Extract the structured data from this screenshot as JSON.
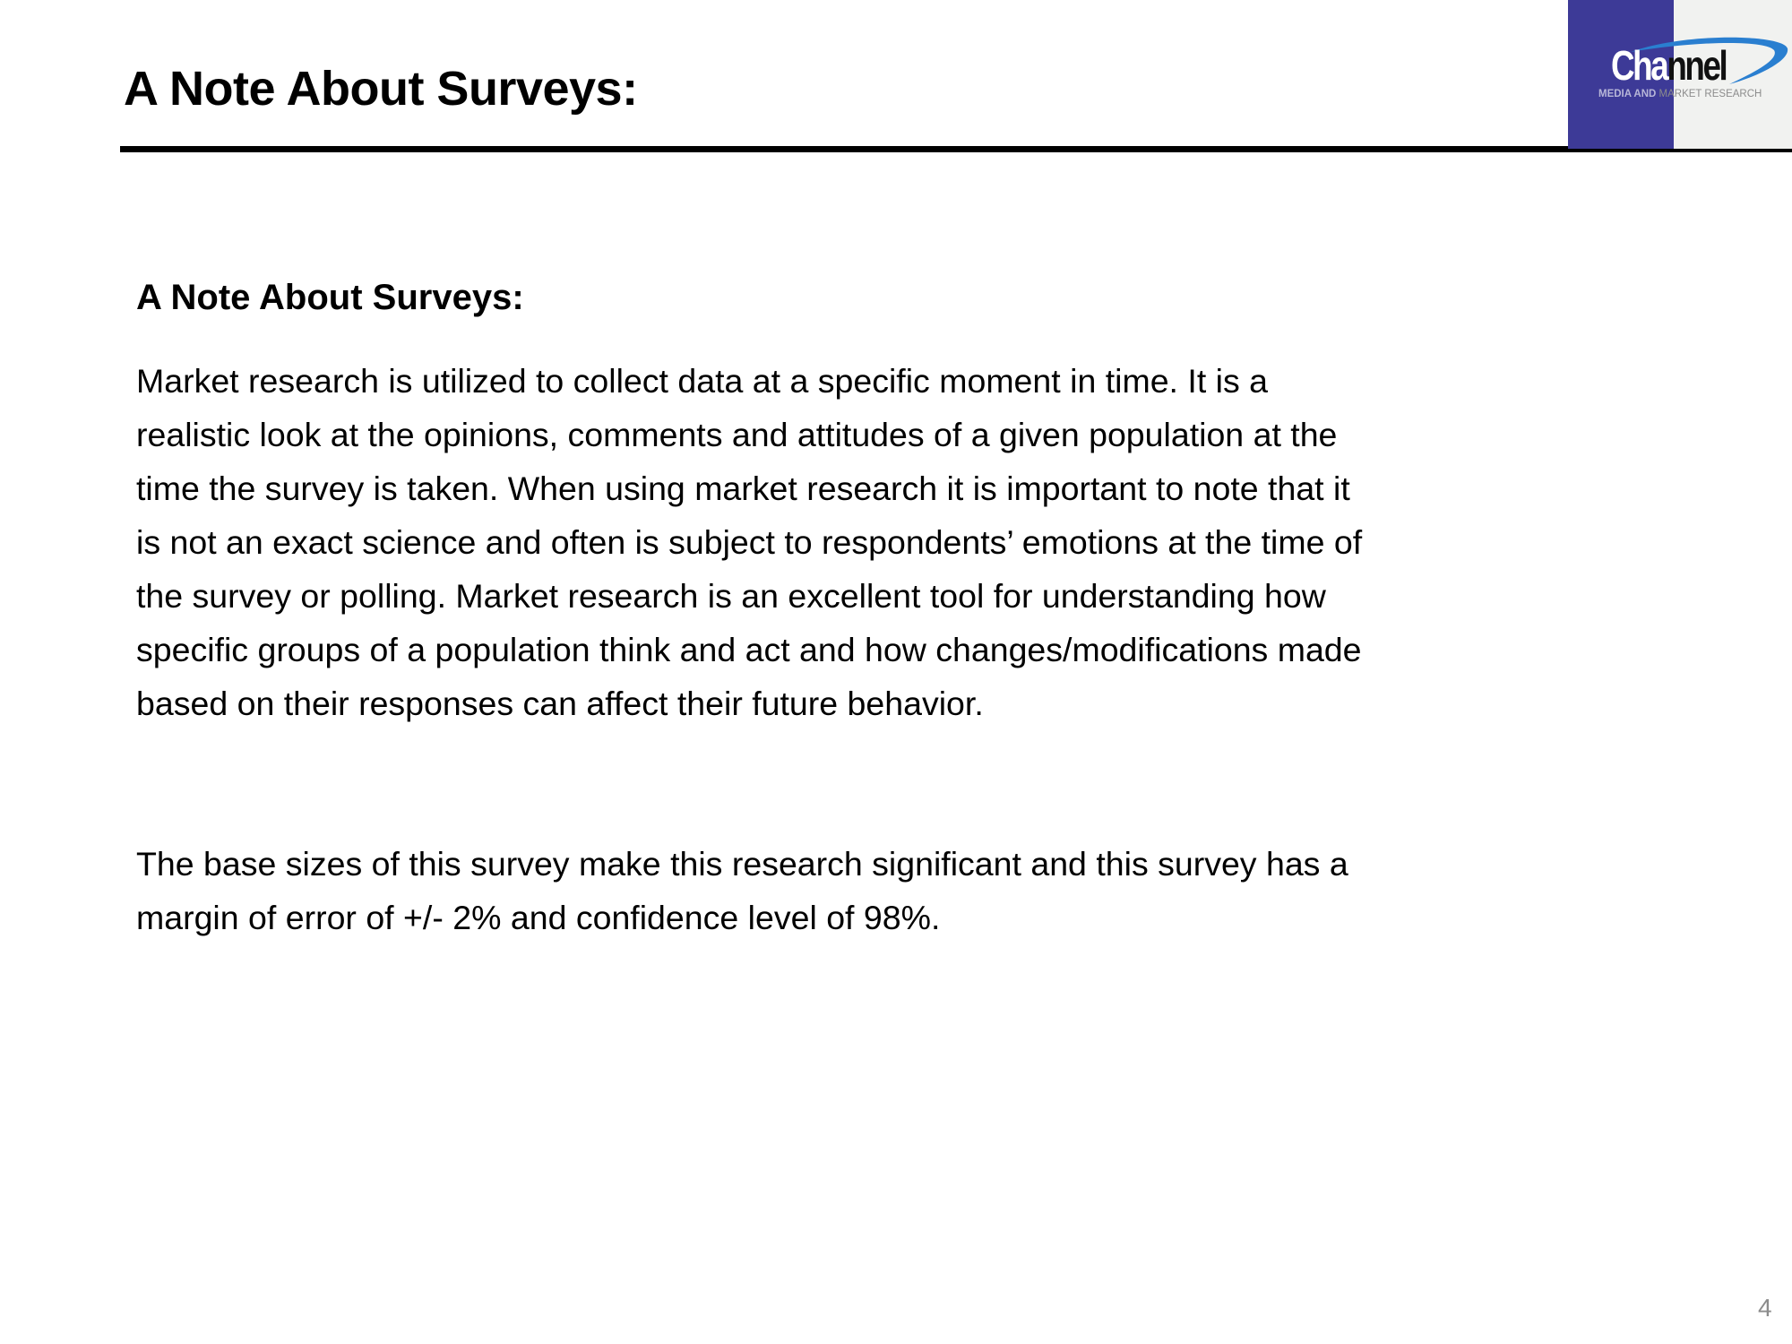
{
  "header": {
    "title": "A Note About Surveys:",
    "logo": {
      "word_white": "Cha",
      "word_dark": "nnel",
      "tag_left": "MEDIA AND",
      "tag_right": "MARKET RESEARCH",
      "brand_color": "#3d3a97",
      "swoosh_color": "#2a7fd0"
    }
  },
  "main": {
    "subheading": "A Note About Surveys:",
    "paragraph1_lines": [
      "Market research is utilized to collect data at a specific moment in time. It is a",
      "realistic look at the opinions, comments and attitudes of a given population at the",
      "time the survey is taken. When using market research it is important to note that it",
      "is not an exact science and often is subject to respondents’ emotions at the time of",
      "the survey or polling. Market research is an excellent tool for understanding how",
      "specific groups of a population think and act and how changes/modifications made",
      "based on their responses can affect their future behavior."
    ],
    "paragraph2_lines": [
      "The base sizes of this survey make this research significant and this survey has a",
      "margin of error of +/- 2% and confidence level of 98%."
    ]
  },
  "footer": {
    "page_number": "4"
  }
}
